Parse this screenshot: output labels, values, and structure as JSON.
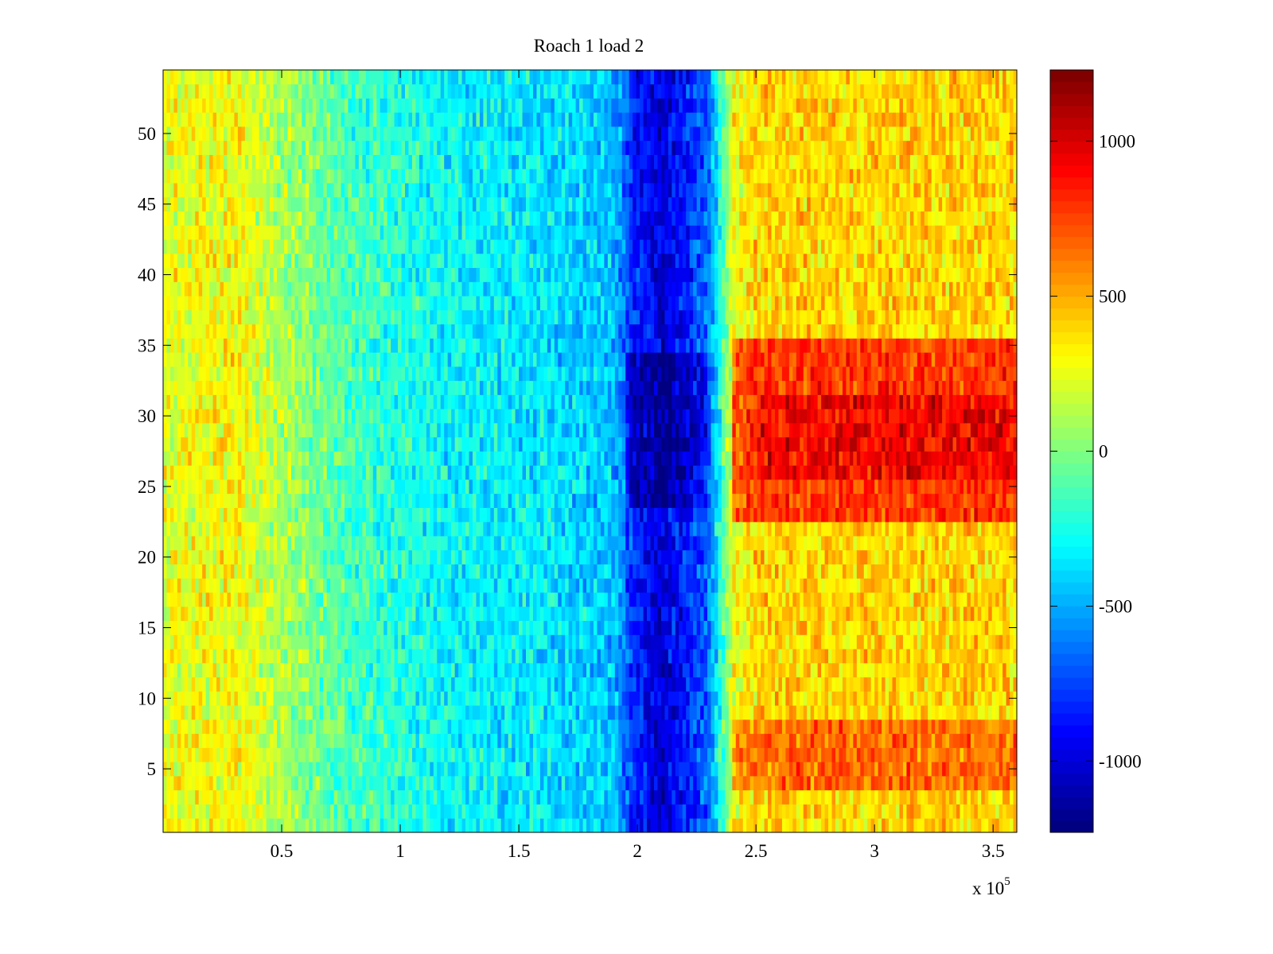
{
  "chart_data": {
    "type": "heatmap",
    "title": "Roach 1 load 2",
    "xlabel": "",
    "ylabel": "",
    "x_exponent_label": "x 10",
    "x_exponent": "5",
    "xlim": [
      0,
      3.6
    ],
    "ylim": [
      0.5,
      54.5
    ],
    "xticks": [
      0.5,
      1,
      1.5,
      2,
      2.5,
      3,
      3.5
    ],
    "xtick_labels": [
      "0.5",
      "1",
      "1.5",
      "2",
      "2.5",
      "3",
      "3.5"
    ],
    "yticks": [
      5,
      10,
      15,
      20,
      25,
      30,
      35,
      40,
      45,
      50
    ],
    "ytick_labels": [
      "5",
      "10",
      "15",
      "20",
      "25",
      "30",
      "35",
      "40",
      "45",
      "50"
    ],
    "rows": 54,
    "colormap": "jet",
    "clim": [
      -1230,
      1230
    ],
    "colorbar_ticks": [
      1000,
      500,
      0,
      -500,
      -1000
    ],
    "colorbar_tick_labels": [
      "1000",
      "500",
      "0",
      "-500",
      "-1000"
    ],
    "column_mean_profile": {
      "x": [
        0,
        0.3,
        0.5,
        0.8,
        1.2,
        1.6,
        1.9,
        1.98,
        2.1,
        2.2,
        2.3,
        2.34,
        2.4,
        2.5,
        3.6
      ],
      "value": [
        250,
        300,
        100,
        -150,
        -300,
        -350,
        -450,
        -800,
        -1000,
        -850,
        -650,
        -300,
        250,
        400,
        400
      ]
    },
    "row_hotspots": [
      {
        "rows": [
          23,
          35
        ],
        "x_from": 2.4,
        "boost": 380
      },
      {
        "rows": [
          26,
          31
        ],
        "x_from": 2.5,
        "boost": 150
      },
      {
        "rows": [
          4,
          8
        ],
        "x_from": 2.4,
        "boost": 250
      },
      {
        "rows": [
          24,
          34
        ],
        "x_from": 1.95,
        "x_to": 2.3,
        "boost": -200
      }
    ],
    "noise_amplitude": 260,
    "grid": false
  }
}
